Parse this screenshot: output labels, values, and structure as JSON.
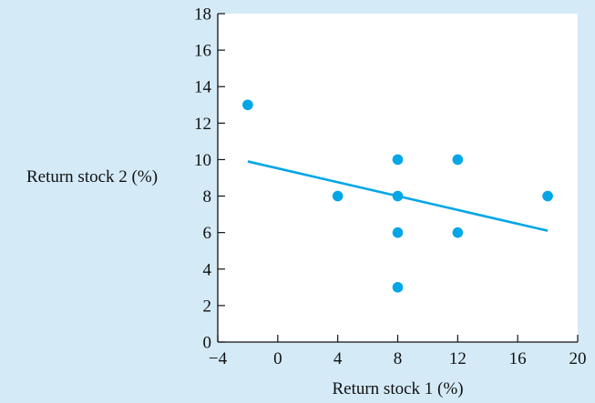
{
  "chart_data": {
    "type": "scatter",
    "title": "",
    "xlabel": "Return stock 1 (%)",
    "ylabel": "Return stock 2 (%)",
    "xlim": [
      -4,
      20
    ],
    "ylim": [
      0,
      18
    ],
    "xticks": [
      -4,
      0,
      4,
      8,
      12,
      16,
      20
    ],
    "yticks": [
      0,
      2,
      4,
      6,
      8,
      10,
      12,
      14,
      16,
      18
    ],
    "xtick_labels": [
      "−4",
      "0",
      "4",
      "8",
      "12",
      "16",
      "20"
    ],
    "ytick_labels": [
      "0",
      "2",
      "4",
      "6",
      "8",
      "10",
      "12",
      "14",
      "16",
      "18"
    ],
    "grid": false,
    "points": [
      {
        "x": -2,
        "y": 13
      },
      {
        "x": 4,
        "y": 8
      },
      {
        "x": 8,
        "y": 10
      },
      {
        "x": 8,
        "y": 8
      },
      {
        "x": 8,
        "y": 6
      },
      {
        "x": 8,
        "y": 3
      },
      {
        "x": 12,
        "y": 10
      },
      {
        "x": 12,
        "y": 6
      },
      {
        "x": 18,
        "y": 8
      }
    ],
    "trend_line": {
      "x": [
        -2,
        18
      ],
      "y": [
        9.9,
        6.1
      ]
    },
    "colors": {
      "points": "#00a6e6",
      "line": "#00a6e6",
      "axes": "#111111",
      "background": "#d4eaf7"
    }
  }
}
